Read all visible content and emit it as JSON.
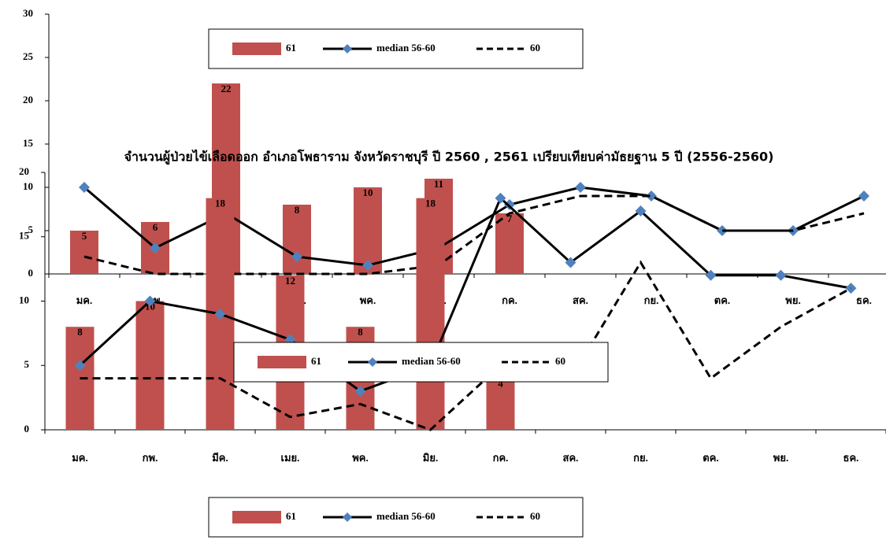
{
  "chart_data": [
    {
      "type": "bar-line",
      "categories": [
        "มค.",
        "กพ.",
        "มีค.",
        "เมย.",
        "พค.",
        "มิย.",
        "กค.",
        "สค.",
        "กย.",
        "ตค.",
        "พย.",
        "ธค."
      ],
      "ylim": [
        0,
        30
      ],
      "yticks": [
        0,
        5,
        10,
        15,
        20,
        25,
        30
      ],
      "series": [
        {
          "name": "61",
          "kind": "bar",
          "color": "#c0504d",
          "values": [
            5,
            6,
            22,
            8,
            10,
            11,
            7,
            null,
            null,
            null,
            null,
            null
          ]
        },
        {
          "name": "median 56-60",
          "kind": "line",
          "color": "#000000",
          "marker_color": "#4f81bd",
          "values": [
            10,
            3,
            7,
            2,
            1,
            3,
            8,
            10,
            9,
            5,
            5,
            9
          ]
        },
        {
          "name": "60",
          "kind": "line",
          "dash": true,
          "color": "#000000",
          "values": [
            2,
            0,
            0,
            0,
            0,
            1,
            7,
            9,
            9,
            5,
            5,
            7
          ]
        }
      ]
    },
    {
      "type": "bar-line",
      "title": "จำนวนผู้ป่วยไข้เลือดออก อำเภอโพธาราม จังหวัดราชบุรี ปี 2560 , 2561 เปรียบเทียบค่ามัธยฐาน 5 ปี (2556-2560)",
      "categories": [
        "มค.",
        "กพ.",
        "มีค.",
        "เมย.",
        "พค.",
        "มิย.",
        "กค.",
        "สค.",
        "กย.",
        "ตค.",
        "พย.",
        "ธค."
      ],
      "ylim": [
        0,
        20
      ],
      "yticks": [
        0,
        5,
        10,
        15,
        20
      ],
      "series": [
        {
          "name": "61",
          "kind": "bar",
          "color": "#c0504d",
          "values": [
            8,
            10,
            18,
            12,
            8,
            18,
            4,
            null,
            null,
            null,
            null,
            null
          ]
        },
        {
          "name": "median 56-60",
          "kind": "line",
          "color": "#000000",
          "marker_color": "#4f81bd",
          "values": [
            5,
            10,
            9,
            7,
            3,
            5,
            18,
            13,
            17,
            12,
            12,
            11
          ]
        },
        {
          "name": "60",
          "kind": "line",
          "dash": true,
          "color": "#000000",
          "values": [
            4,
            4,
            4,
            1,
            2,
            0,
            5,
            4,
            13,
            4,
            8,
            11
          ]
        }
      ]
    }
  ]
}
